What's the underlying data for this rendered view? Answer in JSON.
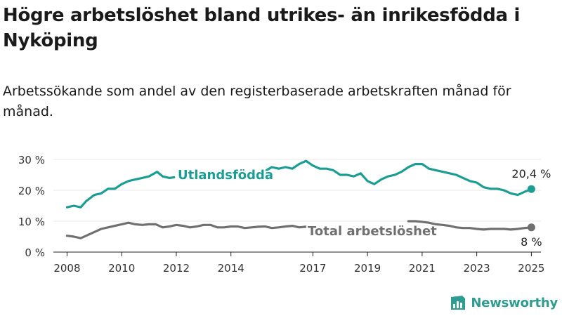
{
  "title": "Högre arbetslöshet bland utrikes- än inrikesfödda i Nyköping",
  "subtitle": "Arbetssökande som andel av den registerbaserade arbetskraften månad för månad.",
  "brand": {
    "name": "Newsworthy",
    "icon": "newsworthy-logo-icon"
  },
  "colors": {
    "foreign": "#1a9e94",
    "total": "#707070",
    "axis": "#222222",
    "grid": "#e8e8e8"
  },
  "chart_data": {
    "type": "line",
    "title": "Högre arbetslöshet bland utrikes- än inrikesfödda i Nyköping",
    "subtitle": "Arbetssökande som andel av den registerbaserade arbetskraften månad för månad.",
    "xlabel": "",
    "ylabel": "",
    "xlim": [
      2007.5,
      2025.35
    ],
    "ylim": [
      0,
      30
    ],
    "y_ticks": [
      0,
      10,
      20,
      30
    ],
    "y_tick_labels": [
      "0 %",
      "10 %",
      "20 %",
      "30 %"
    ],
    "x_ticks": [
      2008,
      2010,
      2012,
      2014,
      2017,
      2019,
      2021,
      2023,
      2025
    ],
    "x_tick_labels": [
      "2008",
      "2010",
      "2012",
      "2014",
      "2017",
      "2019",
      "2021",
      "2023",
      "2025"
    ],
    "grid": false,
    "legend": "none (direct labels on lines)",
    "series": [
      {
        "name": "Utlandsfödda",
        "color": "#1a9e94",
        "end_label": "20,4 %",
        "x": [
          2008.0,
          2008.25,
          2008.5,
          2008.7,
          2009.0,
          2009.25,
          2009.5,
          2009.75,
          2010.0,
          2010.25,
          2010.5,
          2010.75,
          2011.0,
          2011.3,
          2011.5,
          2011.75,
          2011.92,
          null,
          2015.3,
          2015.5,
          2015.75,
          2016.0,
          2016.25,
          2016.5,
          2016.75,
          2017.0,
          2017.25,
          2017.5,
          2017.75,
          2018.0,
          2018.25,
          2018.5,
          2018.75,
          2019.0,
          2019.25,
          2019.5,
          2019.75,
          2020.0,
          2020.25,
          2020.5,
          2020.75,
          2021.0,
          2021.25,
          2021.5,
          2021.75,
          2022.0,
          2022.25,
          2022.5,
          2022.75,
          2023.0,
          2023.25,
          2023.5,
          2023.75,
          2024.0,
          2024.25,
          2024.5,
          2024.75,
          2025.0
        ],
        "values": [
          14.5,
          15.0,
          14.5,
          16.5,
          18.5,
          19.0,
          20.5,
          20.5,
          22.0,
          23.0,
          23.5,
          24.0,
          24.5,
          26.0,
          24.5,
          24.0,
          24.2,
          null,
          26.5,
          27.5,
          27.0,
          27.5,
          27.0,
          28.5,
          29.5,
          28.0,
          27.0,
          27.0,
          26.5,
          25.0,
          25.0,
          24.5,
          25.5,
          23.0,
          22.0,
          23.5,
          24.5,
          25.0,
          26.0,
          27.5,
          28.5,
          28.5,
          27.0,
          26.5,
          26.0,
          25.5,
          25.0,
          24.0,
          23.0,
          22.5,
          21.0,
          20.5,
          20.5,
          20.0,
          19.0,
          18.5,
          19.5,
          20.4
        ]
      },
      {
        "name": "Total arbetslöshet",
        "color": "#707070",
        "end_label": "8 %",
        "x": [
          2008.0,
          2008.25,
          2008.5,
          2008.75,
          2009.0,
          2009.25,
          2009.5,
          2009.75,
          2010.0,
          2010.25,
          2010.5,
          2010.75,
          2011.0,
          2011.25,
          2011.5,
          2011.75,
          2012.0,
          2012.25,
          2012.5,
          2012.75,
          2013.0,
          2013.25,
          2013.5,
          2013.75,
          2014.0,
          2014.25,
          2014.5,
          2014.75,
          2015.0,
          2015.25,
          2015.5,
          2015.75,
          2016.0,
          2016.25,
          2016.5,
          2016.75,
          null,
          2020.5,
          2020.75,
          2021.0,
          2021.25,
          2021.5,
          2021.75,
          2022.0,
          2022.25,
          2022.5,
          2022.75,
          2023.0,
          2023.25,
          2023.5,
          2023.75,
          2024.0,
          2024.25,
          2024.5,
          2024.75,
          2025.0
        ],
        "values": [
          5.3,
          5.0,
          4.5,
          5.5,
          6.5,
          7.5,
          8.0,
          8.5,
          9.0,
          9.5,
          9.0,
          8.8,
          9.0,
          9.0,
          8.0,
          8.3,
          8.8,
          8.5,
          8.0,
          8.3,
          8.8,
          8.8,
          8.0,
          8.0,
          8.3,
          8.3,
          7.8,
          8.0,
          8.2,
          8.3,
          7.8,
          8.0,
          8.3,
          8.5,
          8.0,
          8.2,
          null,
          10.0,
          10.0,
          9.8,
          9.5,
          9.0,
          8.8,
          8.5,
          8.0,
          7.8,
          7.8,
          7.5,
          7.3,
          7.5,
          7.5,
          7.5,
          7.3,
          7.5,
          7.8,
          8.0
        ]
      }
    ]
  }
}
